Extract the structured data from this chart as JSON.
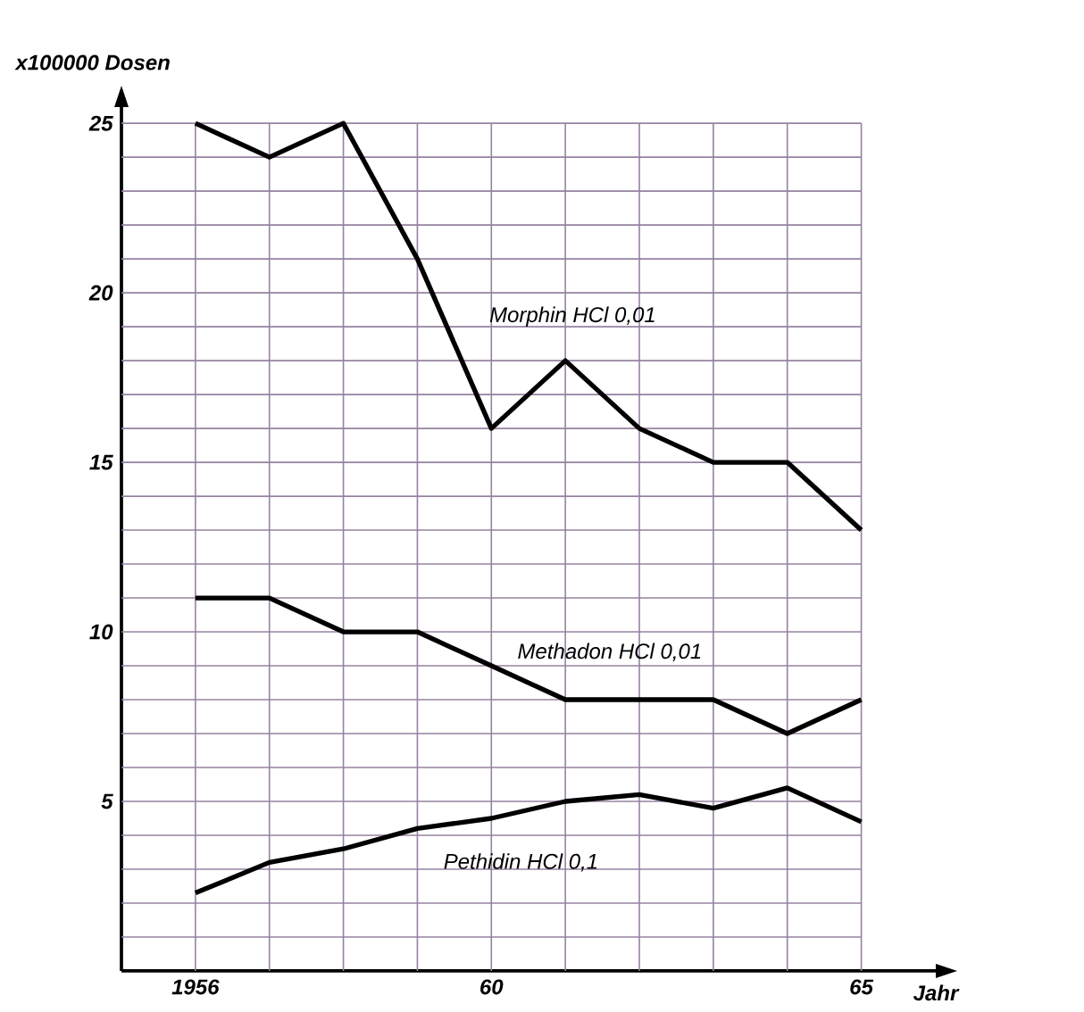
{
  "chart_data": {
    "type": "line",
    "xlabel": "Jahr",
    "ylabel": "x100000 Dosen",
    "x": [
      1956,
      1957,
      1958,
      1959,
      1960,
      1961,
      1962,
      1963,
      1964,
      1965
    ],
    "xlim": [
      1955,
      1966.2
    ],
    "ylim": [
      0,
      25.9
    ],
    "xticks": [
      {
        "value": 1956,
        "label": "1956"
      },
      {
        "value": 1957,
        "label": null
      },
      {
        "value": 1958,
        "label": null
      },
      {
        "value": 1959,
        "label": null
      },
      {
        "value": 1960,
        "label": "60"
      },
      {
        "value": 1961,
        "label": null
      },
      {
        "value": 1962,
        "label": null
      },
      {
        "value": 1963,
        "label": null
      },
      {
        "value": 1964,
        "label": null
      },
      {
        "value": 1965,
        "label": "65"
      }
    ],
    "yticks": [
      {
        "value": 1,
        "label": null
      },
      {
        "value": 2,
        "label": null
      },
      {
        "value": 3,
        "label": null
      },
      {
        "value": 4,
        "label": null
      },
      5,
      {
        "value": 6,
        "label": null
      },
      {
        "value": 7,
        "label": null
      },
      {
        "value": 8,
        "label": null
      },
      {
        "value": 9,
        "label": null
      },
      10,
      {
        "value": 11,
        "label": null
      },
      {
        "value": 12,
        "label": null
      },
      {
        "value": 13,
        "label": null
      },
      {
        "value": 14,
        "label": null
      },
      15,
      {
        "value": 16,
        "label": null
      },
      {
        "value": 17,
        "label": null
      },
      {
        "value": 18,
        "label": null
      },
      {
        "value": 19,
        "label": null
      },
      20,
      {
        "value": 21,
        "label": null
      },
      {
        "value": 22,
        "label": null
      },
      {
        "value": 23,
        "label": null
      },
      {
        "value": 24,
        "label": null
      },
      25
    ],
    "grid": true,
    "series": [
      {
        "name": "Morphin HCl 0,01",
        "color": "#000000",
        "values": [
          25,
          24,
          25,
          21,
          16,
          18,
          16,
          15,
          15,
          13
        ]
      },
      {
        "name": "Methadon HCl 0,01",
        "color": "#000000",
        "values": [
          11,
          11,
          10,
          10,
          9,
          8,
          8,
          8,
          7,
          8
        ]
      },
      {
        "name": "Pethidin HCl 0,1",
        "color": "#000000",
        "values": [
          2.3,
          3.2,
          3.6,
          4.2,
          4.5,
          5.0,
          5.2,
          4.8,
          5.4,
          4.4
        ]
      }
    ]
  }
}
